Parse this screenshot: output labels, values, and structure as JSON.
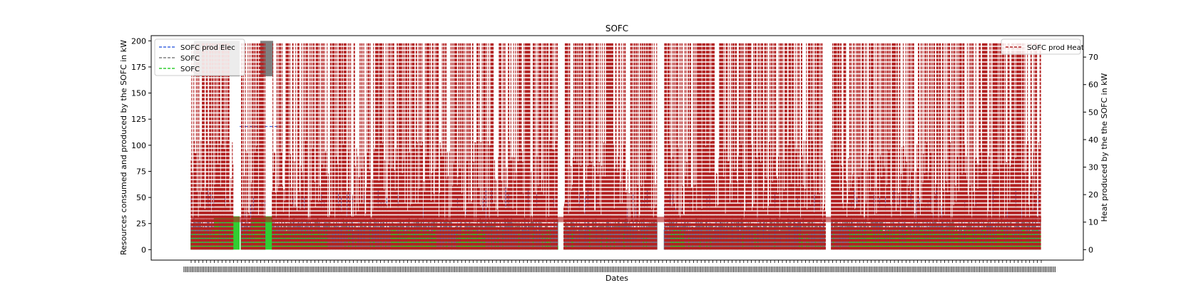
{
  "chart_data": {
    "type": "line",
    "title": "SOFC",
    "xlabel": "Dates",
    "ylabel": "Resources consumed and produced by the SOFC in kW",
    "y2label": "Heat produced by the the SOFC in kW",
    "ylim": [
      -10,
      205
    ],
    "y2lim": [
      -3.8,
      77.8
    ],
    "yticks": [
      0,
      25,
      50,
      75,
      100,
      125,
      150,
      175,
      200
    ],
    "y2ticks": [
      0,
      10,
      20,
      30,
      40,
      50,
      60,
      70
    ],
    "legend_left_placement": "top-left",
    "legend_right_placement": "top-right",
    "grid": false,
    "series": [
      {
        "name": "SOFC prod Elec",
        "axis": "left",
        "color": "#4169e1",
        "style": "dashed",
        "typical_low": 0,
        "typical_high": 60,
        "plateau_value": 118
      },
      {
        "name": "SOFC",
        "axis": "left",
        "color": "#808080",
        "style": "dashed",
        "typical_low": 0,
        "typical_high": 30,
        "plateau_value": 166
      },
      {
        "name": "SOFC",
        "axis": "left",
        "color": "#32cd32",
        "style": "dashed",
        "typical_low": 0,
        "typical_high": 20,
        "plateau_value": 32
      },
      {
        "name": "SOFC prod Heat",
        "axis": "right",
        "color": "#b22222",
        "style": "dashed",
        "typical_low": 0,
        "typical_high": 75
      }
    ]
  }
}
